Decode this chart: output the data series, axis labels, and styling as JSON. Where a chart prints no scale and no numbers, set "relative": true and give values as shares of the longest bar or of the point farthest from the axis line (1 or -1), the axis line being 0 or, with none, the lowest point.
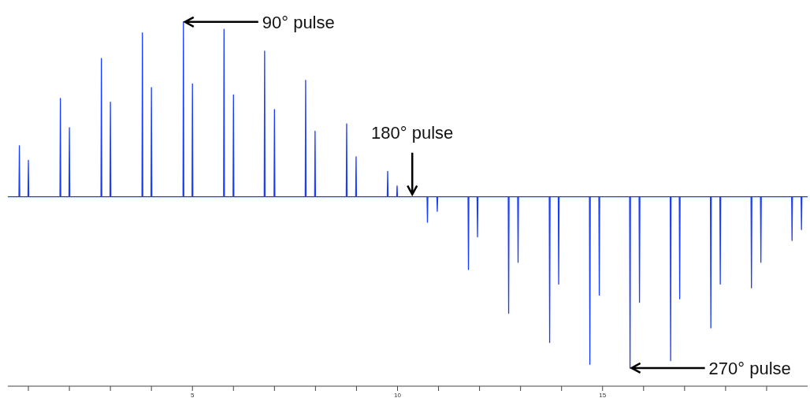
{
  "chart_data": {
    "type": "line",
    "relative": true,
    "marker": "none",
    "grid": false,
    "legend": false,
    "xlim": [
      0.5,
      20
    ],
    "xticks": [
      {
        "value": 1,
        "label": null
      },
      {
        "value": 2,
        "label": null
      },
      {
        "value": 3,
        "label": null
      },
      {
        "value": 4,
        "label": null
      },
      5,
      {
        "value": 6,
        "label": null
      },
      {
        "value": 7,
        "label": null
      },
      {
        "value": 8,
        "label": null
      },
      {
        "value": 9,
        "label": null
      },
      10,
      {
        "value": 11,
        "label": null
      },
      {
        "value": 12,
        "label": null
      },
      {
        "value": 13,
        "label": null
      },
      {
        "value": 14,
        "label": null
      },
      15,
      {
        "value": 16,
        "label": null
      },
      {
        "value": 17,
        "label": null
      },
      {
        "value": 18,
        "label": null
      },
      {
        "value": 19,
        "label": null
      }
    ],
    "series": [
      {
        "color": "#1a3cff",
        "x": [
          0.5,
          0.77,
          0.78,
          0.79,
          0.99,
          1.0,
          1.01,
          1.77,
          1.78,
          1.79,
          1.99,
          2.0,
          2.01,
          2.77,
          2.78,
          2.79,
          2.99,
          3.0,
          3.01,
          3.77,
          3.78,
          3.79,
          3.99,
          4.0,
          4.01,
          4.77,
          4.78,
          4.79,
          4.99,
          5.0,
          5.01,
          5.76,
          5.77,
          5.78,
          5.99,
          6.0,
          6.01,
          6.75,
          6.76,
          6.77,
          6.99,
          7.0,
          7.01,
          7.75,
          7.76,
          7.77,
          7.98,
          7.99,
          8.0,
          8.75,
          8.76,
          8.77,
          8.98,
          8.99,
          9.0,
          9.75,
          9.76,
          9.77,
          9.98,
          9.99,
          10.0,
          10.72,
          10.73,
          10.74,
          10.96,
          10.97,
          10.98,
          11.72,
          11.73,
          11.74,
          11.94,
          11.95,
          11.96,
          12.7,
          12.71,
          12.72,
          12.93,
          12.94,
          12.95,
          13.7,
          13.71,
          13.72,
          13.92,
          13.93,
          13.94,
          14.68,
          14.69,
          14.7,
          14.91,
          14.92,
          14.93,
          15.66,
          15.67,
          15.68,
          15.89,
          15.9,
          15.91,
          16.65,
          16.66,
          16.67,
          16.87,
          16.88,
          16.89,
          17.63,
          17.64,
          17.65,
          17.86,
          17.87,
          17.88,
          18.62,
          18.63,
          18.64,
          18.85,
          18.86,
          18.87,
          19.61,
          19.62,
          19.63,
          19.84,
          19.85,
          19.86,
          20
        ],
        "values": [
          0.52,
          0.52,
          0.66,
          0.52,
          0.52,
          0.62,
          0.52,
          0.52,
          0.79,
          0.52,
          0.52,
          0.71,
          0.52,
          0.52,
          0.9,
          0.52,
          0.52,
          0.78,
          0.52,
          0.52,
          0.97,
          0.52,
          0.52,
          0.82,
          0.52,
          0.52,
          1,
          0.52,
          0.52,
          0.83,
          0.52,
          0.52,
          0.98,
          0.52,
          0.52,
          0.8,
          0.52,
          0.52,
          0.92,
          0.52,
          0.52,
          0.76,
          0.52,
          0.52,
          0.84,
          0.52,
          0.52,
          0.7,
          0.52,
          0.52,
          0.72,
          0.52,
          0.52,
          0.63,
          0.52,
          0.52,
          0.59,
          0.52,
          0.52,
          0.55,
          0.52,
          0.52,
          0.45,
          0.52,
          0.52,
          0.48,
          0.52,
          0.52,
          0.32,
          0.52,
          0.52,
          0.41,
          0.52,
          0.52,
          0.2,
          0.52,
          0.52,
          0.34,
          0.52,
          0.52,
          0.12,
          0.52,
          0.52,
          0.28,
          0.52,
          0.52,
          0.06,
          0.52,
          0.52,
          0.25,
          0.52,
          0.52,
          0.05,
          0.52,
          0.52,
          0.23,
          0.52,
          0.52,
          0.07,
          0.52,
          0.52,
          0.24,
          0.52,
          0.52,
          0.16,
          0.52,
          0.52,
          0.28,
          0.52,
          0.52,
          0.27,
          0.52,
          0.52,
          0.34,
          0.52,
          0.52,
          0.4,
          0.52,
          0.52,
          0.43,
          0.52,
          0.52
        ]
      }
    ],
    "annotations": [
      {
        "text": "90° pulse",
        "x": 4.78,
        "y": 1
      },
      {
        "text": "180° pulse",
        "x": 10.36,
        "y": 0.52
      },
      {
        "text": "270° pulse",
        "x": 15.67,
        "y": 0.05
      }
    ]
  }
}
